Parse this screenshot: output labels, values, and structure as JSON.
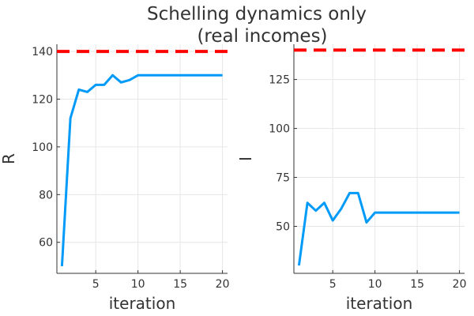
{
  "figure": {
    "title_line1": "Schelling dynamics only",
    "title_line2": "(real incomes)"
  },
  "colors": {
    "series": "#009af9",
    "reference": "#ff0000",
    "grid": "#e6e6e6",
    "axis": "#333333"
  },
  "chart_data": [
    {
      "type": "line",
      "xlabel": "iteration",
      "ylabel": "R",
      "xlim": [
        0.4,
        20.6
      ],
      "ylim": [
        47,
        143
      ],
      "xticks": [
        5,
        10,
        15,
        20
      ],
      "yticks": [
        60,
        80,
        100,
        120,
        140
      ],
      "grid": true,
      "legend": "none",
      "series": [
        {
          "x": [
            1,
            2,
            3,
            4,
            5,
            6,
            7,
            8,
            9,
            10,
            11,
            12,
            13,
            14,
            15,
            16,
            17,
            18,
            19,
            20
          ],
          "values": [
            50,
            112,
            124,
            123,
            126,
            126,
            130,
            127,
            128,
            130,
            130,
            130,
            130,
            130,
            130,
            130,
            130,
            130,
            130,
            130
          ]
        }
      ],
      "reference_line": {
        "y": 140,
        "style": "dashed"
      }
    },
    {
      "type": "line",
      "xlabel": "iteration",
      "ylabel": "I",
      "xlim": [
        0.4,
        20.6
      ],
      "ylim": [
        26,
        143
      ],
      "xticks": [
        5,
        10,
        15,
        20
      ],
      "yticks": [
        50,
        75,
        100,
        125
      ],
      "grid": true,
      "legend": "none",
      "series": [
        {
          "x": [
            1,
            2,
            3,
            4,
            5,
            6,
            7,
            8,
            9,
            10,
            11,
            12,
            13,
            14,
            15,
            16,
            17,
            18,
            19,
            20
          ],
          "values": [
            30,
            62,
            58,
            62,
            53,
            59,
            67,
            67,
            52,
            57,
            57,
            57,
            57,
            57,
            57,
            57,
            57,
            57,
            57,
            57
          ]
        }
      ],
      "reference_line": {
        "y": 140,
        "style": "dashed"
      }
    }
  ]
}
